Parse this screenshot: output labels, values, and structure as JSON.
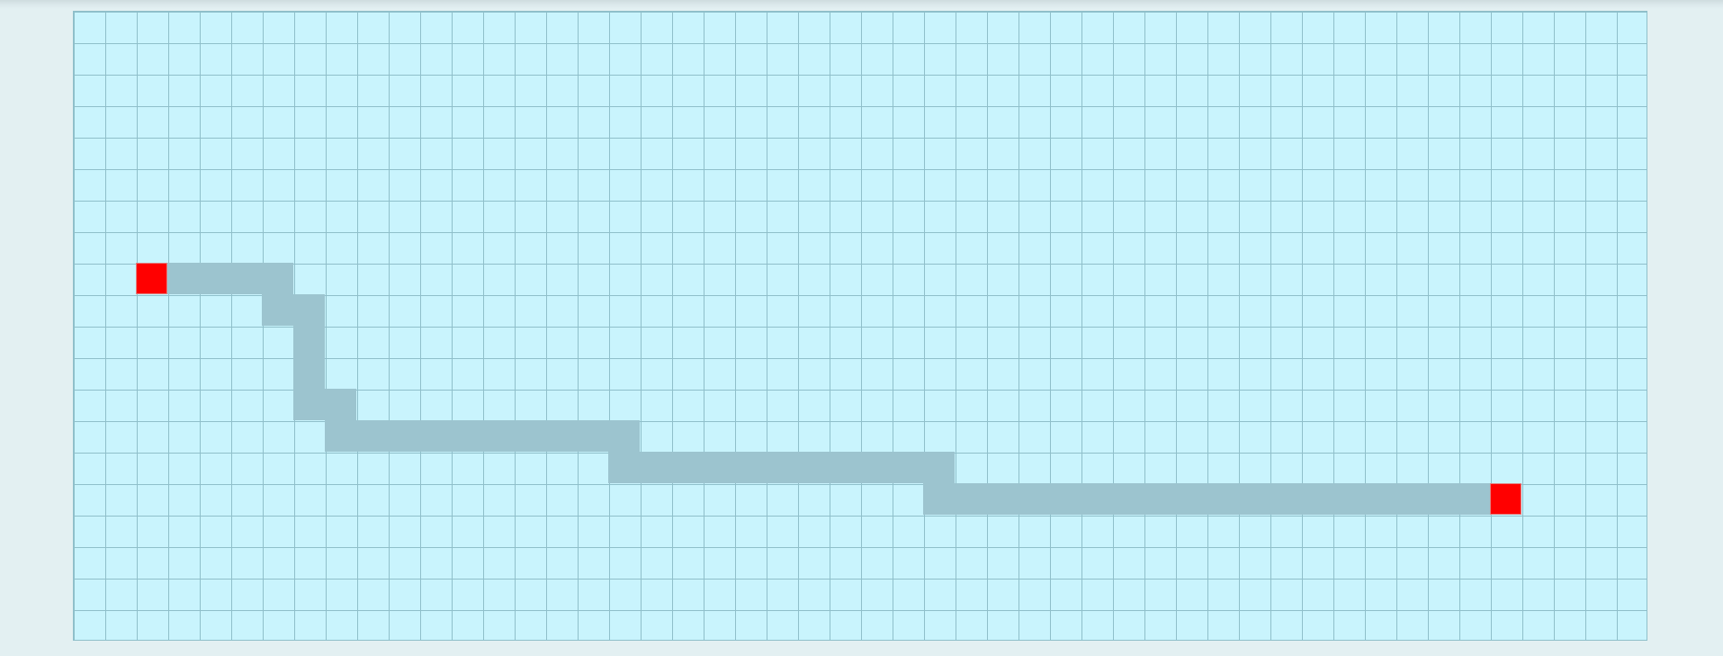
{
  "board": {
    "columns": 50,
    "rows": 20,
    "colors": {
      "background": "#e3f0f2",
      "cell": "#c9f4fd",
      "grid_line": "#8fbfca",
      "path": "#9cc4cf",
      "endpoint": "#ff0000"
    }
  },
  "endpoints": [
    {
      "name": "start",
      "col": 2,
      "row": 8
    },
    {
      "name": "end",
      "col": 45,
      "row": 15
    }
  ],
  "path": [
    [
      3,
      8
    ],
    [
      4,
      8
    ],
    [
      5,
      8
    ],
    [
      6,
      8
    ],
    [
      6,
      9
    ],
    [
      7,
      9
    ],
    [
      7,
      10
    ],
    [
      7,
      11
    ],
    [
      7,
      12
    ],
    [
      8,
      12
    ],
    [
      8,
      13
    ],
    [
      9,
      13
    ],
    [
      10,
      13
    ],
    [
      11,
      13
    ],
    [
      12,
      13
    ],
    [
      13,
      13
    ],
    [
      14,
      13
    ],
    [
      15,
      13
    ],
    [
      16,
      13
    ],
    [
      17,
      13
    ],
    [
      17,
      14
    ],
    [
      18,
      14
    ],
    [
      19,
      14
    ],
    [
      20,
      14
    ],
    [
      21,
      14
    ],
    [
      22,
      14
    ],
    [
      23,
      14
    ],
    [
      24,
      14
    ],
    [
      25,
      14
    ],
    [
      26,
      14
    ],
    [
      27,
      14
    ],
    [
      27,
      15
    ],
    [
      28,
      15
    ],
    [
      29,
      15
    ],
    [
      30,
      15
    ],
    [
      31,
      15
    ],
    [
      32,
      15
    ],
    [
      33,
      15
    ],
    [
      34,
      15
    ],
    [
      35,
      15
    ],
    [
      36,
      15
    ],
    [
      37,
      15
    ],
    [
      38,
      15
    ],
    [
      39,
      15
    ],
    [
      40,
      15
    ],
    [
      41,
      15
    ],
    [
      42,
      15
    ],
    [
      43,
      15
    ],
    [
      44,
      15
    ]
  ]
}
